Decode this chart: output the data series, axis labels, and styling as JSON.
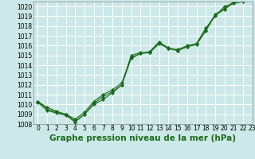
{
  "title": "Graphe pression niveau de la mer (hPa)",
  "bg_color": "#cce8e8",
  "grid_color": "#ffffff",
  "line_color": "#1a6b1a",
  "marker_color": "#1a6b1a",
  "xlim": [
    -0.5,
    23
  ],
  "ylim": [
    1008,
    1020.5
  ],
  "xticks": [
    0,
    1,
    2,
    3,
    4,
    5,
    6,
    7,
    8,
    9,
    10,
    11,
    12,
    13,
    14,
    15,
    16,
    17,
    18,
    19,
    20,
    21,
    22,
    23
  ],
  "yticks": [
    1008,
    1009,
    1010,
    1011,
    1012,
    1013,
    1014,
    1015,
    1016,
    1017,
    1018,
    1019,
    1020
  ],
  "series": [
    [
      1010.3,
      1009.7,
      1009.3,
      1009.0,
      1008.3,
      1009.0,
      1010.0,
      1010.5,
      1011.2,
      1012.0,
      1015.0,
      1015.3,
      1015.3,
      1016.3,
      1015.8,
      1015.5,
      1015.9,
      1016.2,
      1017.8,
      1019.0,
      1020.0,
      1020.3,
      1020.5
    ],
    [
      1010.3,
      1009.5,
      1009.2,
      1009.0,
      1008.5,
      1009.2,
      1010.3,
      1011.0,
      1011.5,
      1012.2,
      1014.8,
      1015.2,
      1015.4,
      1016.4,
      1015.7,
      1015.6,
      1016.0,
      1016.2,
      1017.6,
      1019.2,
      1019.8,
      1020.5,
      1020.8
    ],
    [
      1010.2,
      1009.4,
      1009.1,
      1008.9,
      1008.2,
      1009.0,
      1010.1,
      1010.8,
      1011.3,
      1012.0,
      1014.7,
      1015.2,
      1015.3,
      1016.2,
      1015.7,
      1015.5,
      1015.9,
      1016.1,
      1017.5,
      1019.1,
      1019.7,
      1020.4,
      1020.7
    ]
  ],
  "tick_fontsize": 5.5,
  "title_fontsize": 7.5
}
